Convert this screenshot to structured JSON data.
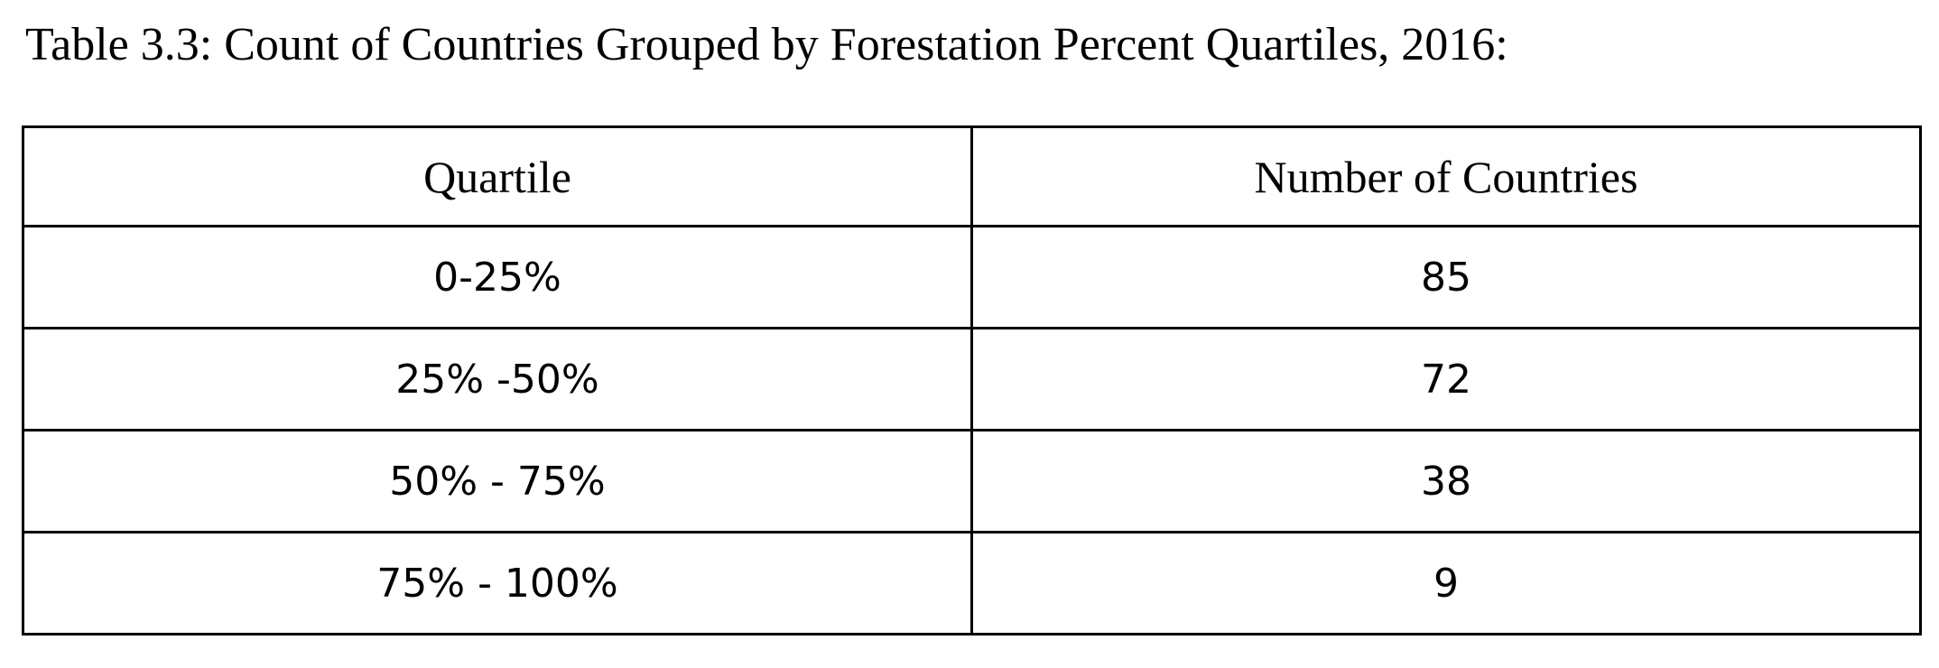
{
  "caption": "Table 3.3: Count of Countries Grouped by Forestation Percent Quartiles, 2016:",
  "table": {
    "headers": [
      "Quartile",
      "Number of Countries"
    ],
    "rows": [
      [
        "0-25%",
        "85"
      ],
      [
        "25% -50%",
        "72"
      ],
      [
        "50% - 75%",
        "38"
      ],
      [
        "75% - 100%",
        "9"
      ]
    ]
  }
}
